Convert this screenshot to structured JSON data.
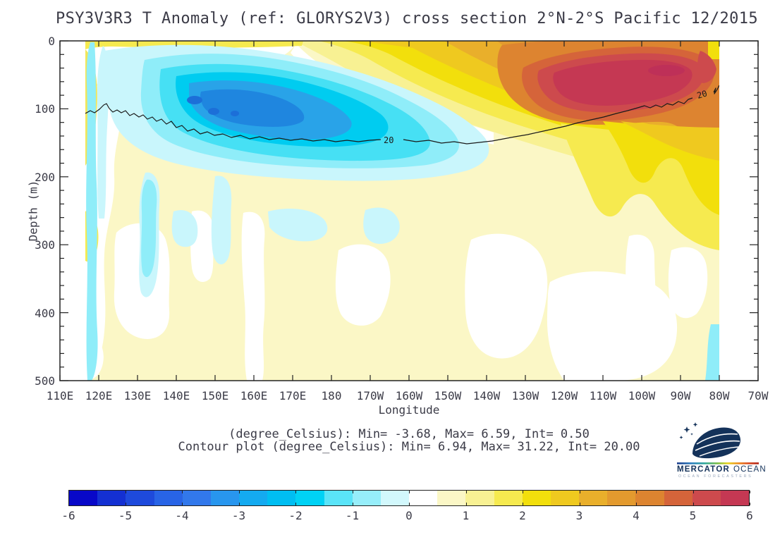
{
  "header": {
    "title": "PSY3V3R3 T Anomaly (ref: GLORYS2V3) cross section 2°N-2°S Pacific 12/2015"
  },
  "plot": {
    "xlabel": "Longitude",
    "ylabel": "Depth (m)",
    "x_ticks": [
      "110E",
      "120E",
      "130E",
      "140E",
      "150E",
      "160E",
      "170E",
      "180",
      "170W",
      "160W",
      "150W",
      "140W",
      "130W",
      "120W",
      "110W",
      "100W",
      "90W",
      "80W",
      "70W"
    ],
    "y_ticks": [
      "0",
      "100",
      "200",
      "300",
      "400",
      "500"
    ],
    "contour_label_west": "20",
    "contour_label_east": "20"
  },
  "annotations": {
    "fill_stats": "(degree_Celsius): Min= -3.68, Max= 6.59, Int= 0.50",
    "contour_stats": "Contour plot (degree_Celsius): Min= 6.94, Max= 31.22, Int= 20.00"
  },
  "colorbar": {
    "tick_values": [
      -6,
      -5,
      -4,
      -3,
      -2,
      -1,
      0,
      1,
      2,
      3,
      4,
      5,
      6
    ],
    "segment_step": 0.5,
    "segment_colors": [
      "#0808C8",
      "#1430D2",
      "#1E4ADC",
      "#2864E6",
      "#3278EB",
      "#2896EE",
      "#14AAF0",
      "#00BEF2",
      "#00D2F5",
      "#5AE4F8",
      "#96EEFA",
      "#D2F8FC",
      "#FFFFFF",
      "#FBF7C6",
      "#F8F193",
      "#F6EA4F",
      "#F2DF0C",
      "#EFC91F",
      "#E9AF2B",
      "#E39A2E",
      "#DD8430",
      "#D5643A",
      "#CD4A4D",
      "#C53853"
    ]
  },
  "logo": {
    "name_primary": "MERCATOR",
    "name_secondary": "OCEAN",
    "tagline": "OCEAN FORECASTERS",
    "navy": "#14325A"
  },
  "chart_data": {
    "type": "heatmap",
    "title": "PSY3V3R3 T Anomaly (ref: GLORYS2V3) cross section 2°N-2°S Pacific 12/2015",
    "xlabel": "Longitude",
    "ylabel": "Depth (m)",
    "x_ticks": [
      "110E",
      "120E",
      "130E",
      "140E",
      "150E",
      "160E",
      "170E",
      "180",
      "170W",
      "160W",
      "150W",
      "140W",
      "130W",
      "120W",
      "110W",
      "100W",
      "90W",
      "80W",
      "70W"
    ],
    "y_ticks_m": [
      0,
      100,
      200,
      300,
      400,
      500
    ],
    "x_range": [
      "110E",
      "70W"
    ],
    "y_range_m": [
      0,
      500
    ],
    "field": {
      "variable": "temperature anomaly",
      "units": "degree_Celsius",
      "min": -3.68,
      "max": 6.59,
      "fill_interval": 0.5
    },
    "overlay_contour": {
      "variable": "temperature",
      "units": "degree_Celsius",
      "min": 6.94,
      "max": 31.22,
      "interval": 20.0,
      "plotted_level": 20
    },
    "colorbar_range": [
      -6,
      6
    ],
    "legend_position": "bottom",
    "grid": false,
    "features": [
      {
        "label": "cold anomaly pool",
        "approx_value_c": -3.5,
        "extent": "125E-175W, 20-250 m depth",
        "core": "145E-165E at 90-160 m"
      },
      {
        "label": "warm anomaly core",
        "approx_value_c": 6.5,
        "extent": "160E-80W upper layer",
        "core": "125W-85W at 30-110 m"
      },
      {
        "label": "20C isotherm depth",
        "west_m": 110,
        "central_m": 150,
        "east_m": 65
      }
    ]
  }
}
